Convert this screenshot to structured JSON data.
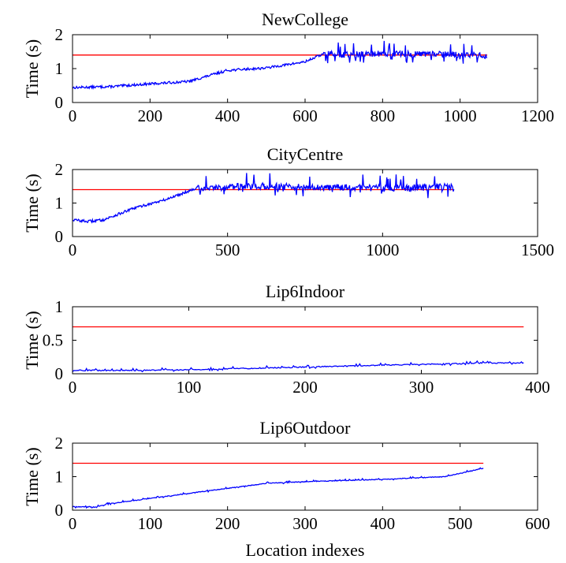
{
  "chart_data": [
    {
      "type": "line",
      "title": "NewCollege",
      "ylabel": "Time (s)",
      "xlabel": "",
      "xlim": [
        0,
        1200
      ],
      "ylim": [
        0,
        2
      ],
      "xticks": [
        "0",
        "200",
        "400",
        "600",
        "800",
        "1000",
        "1200"
      ],
      "yticks": [
        "0",
        "1",
        "2"
      ],
      "series": [
        {
          "name": "threshold",
          "color": "#ff0000",
          "points": [
            [
              0,
              1.4
            ],
            [
              1070,
              1.4
            ]
          ]
        },
        {
          "name": "time",
          "color": "#0000ff",
          "noise_after": 650,
          "noise_amp": 0.18,
          "points": [
            [
              0,
              0.44
            ],
            [
              100,
              0.47
            ],
            [
              200,
              0.55
            ],
            [
              300,
              0.62
            ],
            [
              400,
              0.95
            ],
            [
              500,
              1.02
            ],
            [
              600,
              1.2
            ],
            [
              650,
              1.45
            ],
            [
              700,
              1.4
            ],
            [
              800,
              1.45
            ],
            [
              900,
              1.42
            ],
            [
              1000,
              1.42
            ],
            [
              1070,
              1.38
            ]
          ]
        }
      ]
    },
    {
      "type": "line",
      "title": "CityCentre",
      "ylabel": "Time (s)",
      "xlabel": "",
      "xlim": [
        0,
        1500
      ],
      "ylim": [
        0,
        2
      ],
      "xticks": [
        "0",
        "500",
        "1000",
        "1500"
      ],
      "yticks": [
        "0",
        "1",
        "2"
      ],
      "series": [
        {
          "name": "threshold",
          "color": "#ff0000",
          "points": [
            [
              0,
              1.4
            ],
            [
              1230,
              1.4
            ]
          ]
        },
        {
          "name": "time",
          "color": "#0000ff",
          "noise_after": 400,
          "noise_amp": 0.2,
          "points": [
            [
              0,
              0.5
            ],
            [
              50,
              0.45
            ],
            [
              100,
              0.5
            ],
            [
              200,
              0.85
            ],
            [
              300,
              1.1
            ],
            [
              400,
              1.45
            ],
            [
              600,
              1.5
            ],
            [
              800,
              1.48
            ],
            [
              1000,
              1.45
            ],
            [
              1100,
              1.45
            ],
            [
              1230,
              1.5
            ]
          ]
        }
      ]
    },
    {
      "type": "line",
      "title": "Lip6Indoor",
      "ylabel": "Time (s)",
      "xlabel": "",
      "xlim": [
        0,
        400
      ],
      "ylim": [
        0,
        1
      ],
      "xticks": [
        "0",
        "100",
        "200",
        "300",
        "400"
      ],
      "yticks": [
        "0",
        "0.5",
        "1"
      ],
      "series": [
        {
          "name": "threshold",
          "color": "#ff0000",
          "points": [
            [
              0,
              0.7
            ],
            [
              388,
              0.7
            ]
          ]
        },
        {
          "name": "time",
          "color": "#0000ff",
          "noise_after": 0,
          "noise_amp": 0.015,
          "points": [
            [
              0,
              0.05
            ],
            [
              50,
              0.05
            ],
            [
              100,
              0.06
            ],
            [
              150,
              0.08
            ],
            [
              200,
              0.1
            ],
            [
              250,
              0.12
            ],
            [
              300,
              0.14
            ],
            [
              350,
              0.16
            ],
            [
              388,
              0.16
            ]
          ]
        }
      ]
    },
    {
      "type": "line",
      "title": "Lip6Outdoor",
      "ylabel": "Time (s)",
      "xlabel": "Location indexes",
      "xlim": [
        0,
        600
      ],
      "ylim": [
        0,
        2
      ],
      "xticks": [
        "0",
        "100",
        "200",
        "300",
        "400",
        "500",
        "600"
      ],
      "yticks": [
        "0",
        "1",
        "2"
      ],
      "series": [
        {
          "name": "threshold",
          "color": "#ff0000",
          "points": [
            [
              0,
              1.4
            ],
            [
              530,
              1.4
            ]
          ]
        },
        {
          "name": "time",
          "color": "#0000ff",
          "noise_after": 0,
          "noise_amp": 0.02,
          "points": [
            [
              0,
              0.1
            ],
            [
              30,
              0.1
            ],
            [
              50,
              0.2
            ],
            [
              100,
              0.35
            ],
            [
              150,
              0.5
            ],
            [
              200,
              0.65
            ],
            [
              250,
              0.8
            ],
            [
              300,
              0.85
            ],
            [
              400,
              0.92
            ],
            [
              480,
              1.0
            ],
            [
              510,
              1.15
            ],
            [
              530,
              1.25
            ]
          ]
        }
      ]
    }
  ]
}
